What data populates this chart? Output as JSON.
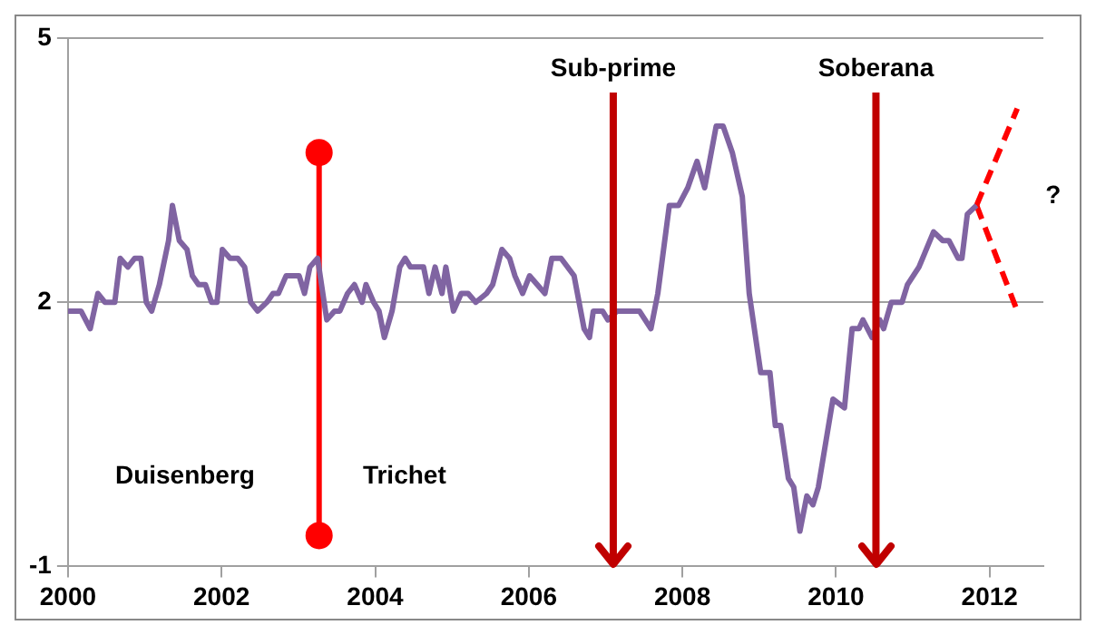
{
  "chart_data": {
    "type": "line",
    "xlim": [
      2000,
      2012.7
    ],
    "xticks": [
      2000,
      2002,
      2004,
      2006,
      2008,
      2010,
      2012
    ],
    "ylim": [
      -1,
      5
    ],
    "yticks": [
      -1,
      2,
      5
    ],
    "grid": "y",
    "legend": false,
    "series": [
      {
        "color": "#8064a2",
        "x": [
          2000.0,
          2000.17,
          2000.29,
          2000.39,
          2000.48,
          2000.61,
          2000.68,
          2000.78,
          2000.87,
          2000.95,
          2001.02,
          2001.09,
          2001.19,
          2001.31,
          2001.36,
          2001.45,
          2001.55,
          2001.62,
          2001.7,
          2001.79,
          2001.87,
          2001.94,
          2002.01,
          2002.11,
          2002.21,
          2002.3,
          2002.38,
          2002.47,
          2002.59,
          2002.67,
          2002.74,
          2002.84,
          2002.93,
          2003.01,
          2003.08,
          2003.15,
          2003.25,
          2003.37,
          2003.47,
          2003.54,
          2003.64,
          2003.73,
          2003.83,
          2003.88,
          2003.98,
          2004.05,
          2004.12,
          2004.22,
          2004.32,
          2004.39,
          2004.46,
          2004.56,
          2004.63,
          2004.7,
          2004.78,
          2004.87,
          2004.92,
          2005.02,
          2005.12,
          2005.21,
          2005.31,
          2005.45,
          2005.53,
          2005.65,
          2005.75,
          2005.82,
          2005.92,
          2006.01,
          2006.11,
          2006.21,
          2006.3,
          2006.42,
          2006.59,
          2006.72,
          2006.79,
          2006.84,
          2006.96,
          2007.03,
          2007.15,
          2007.44,
          2007.59,
          2007.68,
          2007.83,
          2007.95,
          2008.07,
          2008.19,
          2008.29,
          2008.44,
          2008.53,
          2008.65,
          2008.78,
          2008.87,
          2009.02,
          2009.14,
          2009.21,
          2009.28,
          2009.38,
          2009.45,
          2009.53,
          2009.62,
          2009.7,
          2009.77,
          2009.96,
          2010.11,
          2010.21,
          2010.3,
          2010.35,
          2010.47,
          2010.57,
          2010.62,
          2010.72,
          2010.86,
          2010.93,
          2011.08,
          2011.27,
          2011.39,
          2011.47,
          2011.59,
          2011.64,
          2011.71,
          2011.83
        ],
        "values": [
          1.9,
          1.9,
          1.7,
          2.1,
          2.0,
          2.0,
          2.5,
          2.4,
          2.5,
          2.5,
          2.0,
          1.9,
          2.2,
          2.7,
          3.1,
          2.7,
          2.6,
          2.3,
          2.2,
          2.2,
          2.0,
          2.0,
          2.6,
          2.5,
          2.5,
          2.4,
          2.0,
          1.9,
          2.0,
          2.1,
          2.1,
          2.3,
          2.3,
          2.3,
          2.1,
          2.4,
          2.5,
          1.8,
          1.9,
          1.9,
          2.1,
          2.2,
          2.0,
          2.2,
          2.0,
          1.9,
          1.6,
          1.9,
          2.4,
          2.5,
          2.4,
          2.4,
          2.4,
          2.1,
          2.4,
          2.1,
          2.4,
          1.9,
          2.1,
          2.1,
          2.0,
          2.1,
          2.2,
          2.6,
          2.5,
          2.3,
          2.1,
          2.3,
          2.2,
          2.1,
          2.5,
          2.5,
          2.3,
          1.7,
          1.6,
          1.9,
          1.9,
          1.8,
          1.9,
          1.9,
          1.7,
          2.1,
          3.1,
          3.1,
          3.3,
          3.6,
          3.3,
          4.0,
          4.0,
          3.7,
          3.2,
          2.1,
          1.2,
          1.2,
          0.6,
          0.6,
          0.0,
          -0.1,
          -0.6,
          -0.2,
          -0.3,
          -0.1,
          0.9,
          0.8,
          1.7,
          1.7,
          1.8,
          1.6,
          1.8,
          1.7,
          2.0,
          2.0,
          2.2,
          2.4,
          2.8,
          2.7,
          2.7,
          2.5,
          2.5,
          3.0,
          3.1
        ]
      },
      {
        "color": "#ff0000",
        "line_style": "dashed",
        "marker": "none",
        "x": [
          2011.83,
          2012.36
        ],
        "values": [
          3.1,
          4.2
        ]
      },
      {
        "color": "#ff0000",
        "line_style": "dashed",
        "marker": "none",
        "x": [
          2011.83,
          2012.36
        ],
        "values": [
          3.1,
          1.9
        ]
      },
      {
        "color": "#ff0000",
        "line_style": "solid",
        "marker": "circle",
        "x": [
          2003.27,
          2003.27
        ],
        "values": [
          -0.65,
          3.7
        ]
      }
    ],
    "ref_lines": [
      {
        "axis": "x",
        "value": 2007.1,
        "label": "Sub-prime",
        "color": "#c00000"
      },
      {
        "axis": "x",
        "value": 2010.52,
        "label": "Soberana",
        "color": "#c00000"
      }
    ],
    "annotations": [
      "Duisenberg",
      "Trichet",
      "?"
    ]
  }
}
